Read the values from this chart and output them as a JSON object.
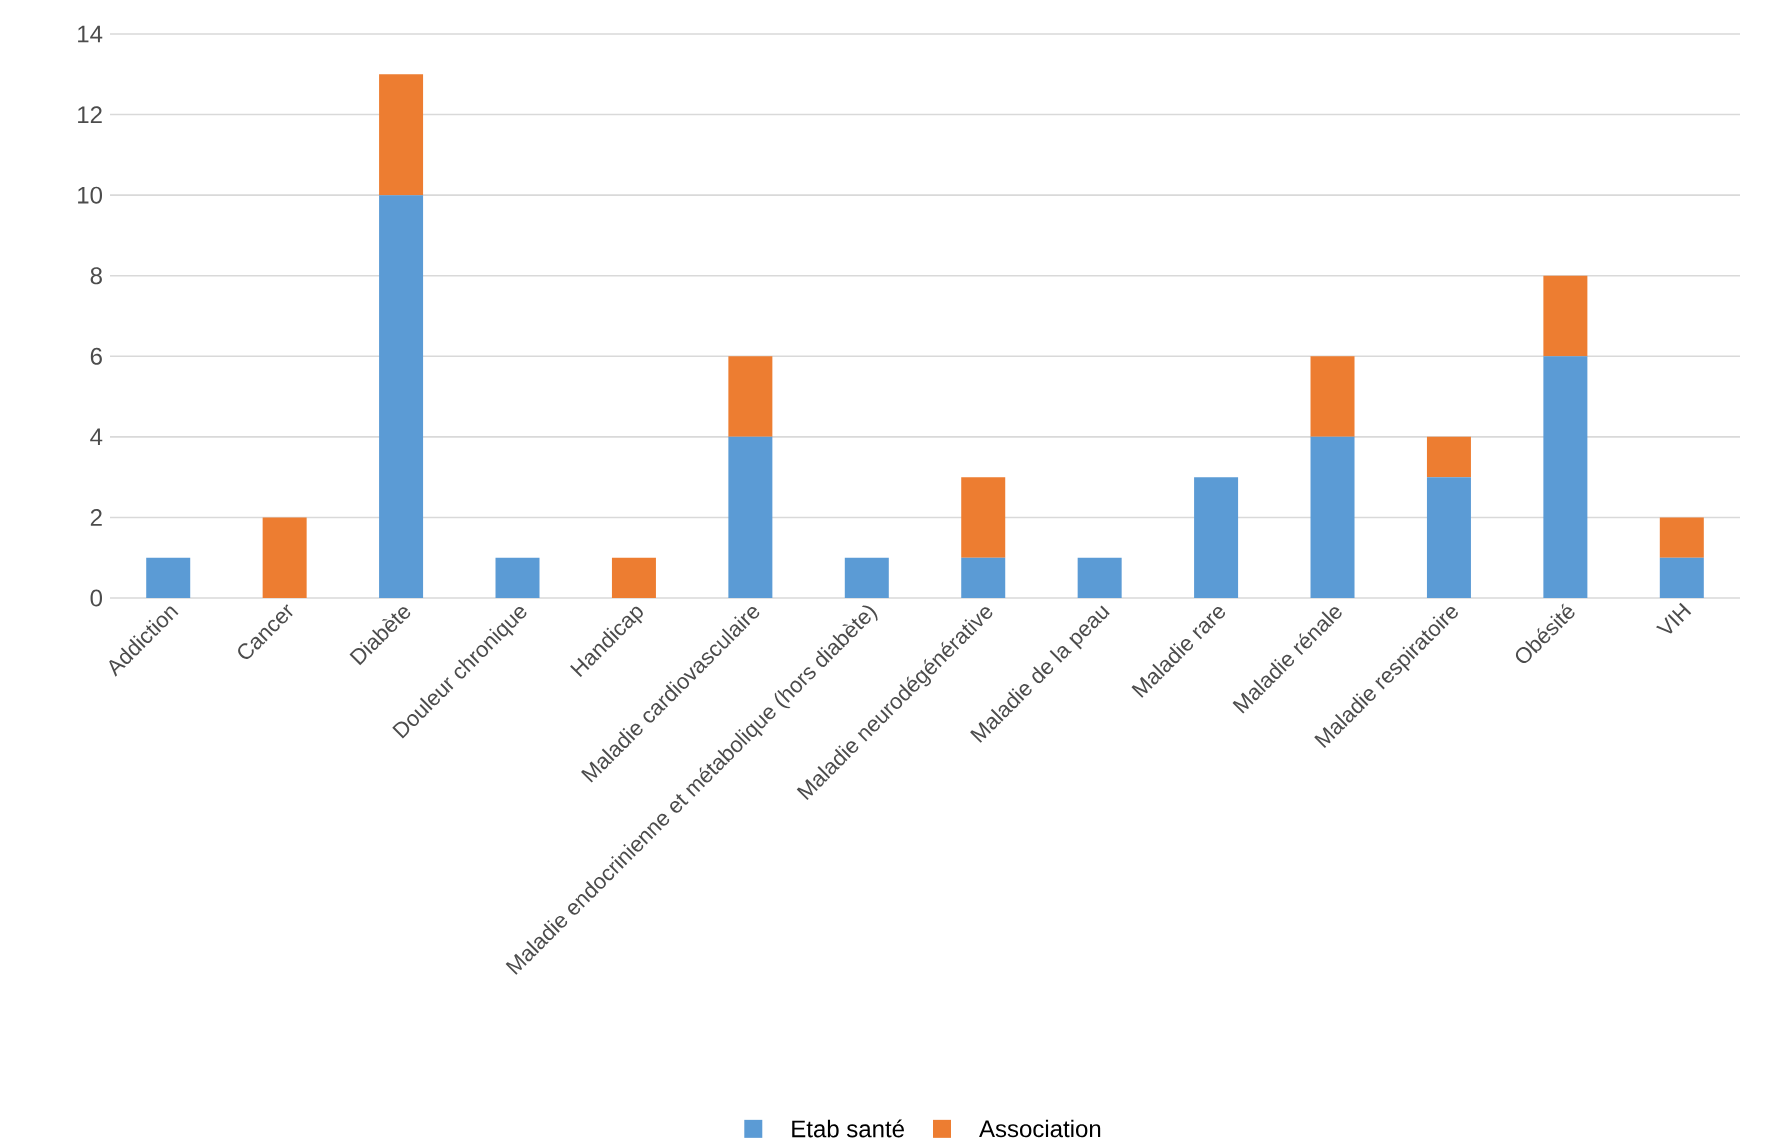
{
  "chart_data": {
    "type": "bar",
    "stacked": true,
    "categories": [
      "Addiction",
      "Cancer",
      "Diabète",
      "Douleur chronique",
      "Handicap",
      "Maladie cardiovasculaire",
      "Maladie endocrinienne et métabolique (hors diabète)",
      "Maladie neurodégénérative",
      "Maladie de la peau",
      "Maladie rare",
      "Maladie rénale",
      "Maladie respiratoire",
      "Obésité",
      "VIH"
    ],
    "series": [
      {
        "name": "Etab santé",
        "color": "#5b9bd5",
        "values": [
          1,
          0,
          10,
          1,
          0,
          4,
          1,
          1,
          1,
          3,
          4,
          3,
          6,
          1
        ]
      },
      {
        "name": "Association",
        "color": "#ed7d31",
        "values": [
          0,
          2,
          3,
          0,
          1,
          2,
          0,
          2,
          0,
          0,
          2,
          1,
          2,
          1
        ]
      }
    ],
    "ylim": [
      0,
      14
    ],
    "yticks": [
      0,
      2,
      4,
      6,
      8,
      10,
      12,
      14
    ],
    "grid": "y",
    "legend": "bottom"
  }
}
